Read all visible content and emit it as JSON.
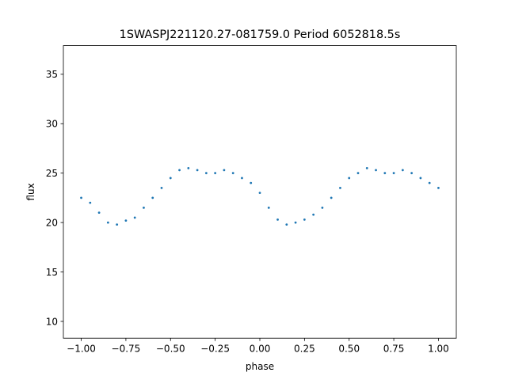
{
  "chart_data": {
    "type": "scatter",
    "title": "1SWASPJ221120.27-081759.0 Period 6052818.5s",
    "xlabel": "phase",
    "ylabel": "flux",
    "xlim": [
      -1.1,
      1.1
    ],
    "ylim": [
      8.3,
      37.9
    ],
    "x_ticks": [
      -1.0,
      -0.75,
      -0.5,
      -0.25,
      0.0,
      0.25,
      0.5,
      0.75,
      1.0
    ],
    "x_tick_labels": [
      "−1.00",
      "−0.75",
      "−0.50",
      "−0.25",
      "0.00",
      "0.25",
      "0.50",
      "0.75",
      "1.00"
    ],
    "y_ticks": [
      10,
      15,
      20,
      25,
      30,
      35
    ],
    "y_tick_labels": [
      "10",
      "15",
      "20",
      "25",
      "30",
      "35"
    ],
    "grid": false,
    "point_color": "#1f77b4",
    "series": [
      {
        "x": [
          -1.0,
          -0.95,
          -0.9,
          -0.85,
          -0.8,
          -0.75,
          -0.7,
          -0.65,
          -0.6,
          -0.55,
          -0.5,
          -0.45,
          -0.4,
          -0.35,
          -0.3,
          -0.25,
          -0.2,
          -0.15,
          -0.1,
          -0.05,
          0.0,
          0.05,
          0.1,
          0.15,
          0.2,
          0.25,
          0.3,
          0.35,
          0.4,
          0.45,
          0.5,
          0.55,
          0.6,
          0.65,
          0.7,
          0.75,
          0.8,
          0.85,
          0.9,
          0.95,
          1.0
        ],
        "y": [
          22.5,
          22.0,
          21.0,
          20.0,
          19.8,
          20.2,
          20.5,
          21.5,
          22.5,
          23.5,
          24.5,
          25.3,
          25.5,
          25.3,
          25.0,
          25.0,
          25.3,
          25.0,
          24.5,
          24.0,
          23.0,
          21.5,
          20.3,
          19.8,
          20.0,
          20.3,
          20.8,
          21.5,
          22.5,
          23.5,
          24.5,
          25.0,
          25.5,
          25.3,
          25.0,
          25.0,
          25.3,
          25.0,
          24.5,
          24.0,
          23.5
        ]
      }
    ]
  }
}
